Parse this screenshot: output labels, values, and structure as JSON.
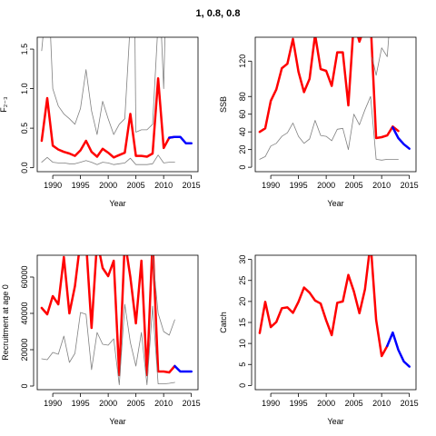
{
  "title": "1, 0.8, 0.8",
  "colors": {
    "main": "#ff0000",
    "projection": "#0000ff",
    "bounds": "#808080",
    "axis": "#000000"
  },
  "chart_data": [
    {
      "id": "F",
      "type": "line",
      "xlabel": "Year",
      "ylabel": "F₂₋₃",
      "xlim": [
        1987.2,
        2016.2
      ],
      "ylim": [
        -0.05,
        1.65
      ],
      "xticks": [
        1990,
        1995,
        2000,
        2005,
        2010,
        2015
      ],
      "yticks": [
        0.0,
        0.5,
        1.0,
        1.5
      ],
      "ytick_labels": [
        "0.0",
        "0.5",
        "1.0",
        "1.5"
      ],
      "series": [
        {
          "role": "estimate",
          "color": "#ff0000",
          "width": 2.5,
          "x": [
            1988,
            1989,
            1990,
            1991,
            1992,
            1993,
            1994,
            1995,
            1996,
            1997,
            1998,
            1999,
            2000,
            2001,
            2002,
            2003,
            2004,
            2005,
            2006,
            2007,
            2008,
            2009,
            2010,
            2011,
            2012
          ],
          "y": [
            0.34,
            0.88,
            0.28,
            0.23,
            0.2,
            0.18,
            0.15,
            0.22,
            0.34,
            0.2,
            0.14,
            0.24,
            0.19,
            0.13,
            0.16,
            0.19,
            0.68,
            0.15,
            0.15,
            0.14,
            0.18,
            1.13,
            0.25,
            0.38,
            0.39
          ]
        },
        {
          "role": "projection",
          "color": "#0000ff",
          "width": 2.5,
          "x": [
            2011,
            2012,
            2013,
            2014,
            2015
          ],
          "y": [
            0.38,
            0.39,
            0.39,
            0.31,
            0.31
          ]
        },
        {
          "role": "upper",
          "color": "#808080",
          "width": 0.8,
          "x": [
            1988,
            1988.5,
            1989,
            1989.5,
            1990,
            1991,
            1992,
            1993,
            1994,
            1995,
            1996,
            1997,
            1998,
            1999,
            2000,
            2001,
            2002,
            2003,
            2004,
            2004.4,
            2004.8,
            2005,
            2006,
            2007,
            2008,
            2009,
            2009.5,
            2010,
            2010.3,
            2010.6
          ],
          "y": [
            1.48,
            1.85,
            1.85,
            1.85,
            1.0,
            0.78,
            0.68,
            0.62,
            0.55,
            0.75,
            1.24,
            0.72,
            0.42,
            0.84,
            0.62,
            0.42,
            0.55,
            0.62,
            1.85,
            1.85,
            1.85,
            0.45,
            0.48,
            0.48,
            0.55,
            1.85,
            1.85,
            1.0,
            1.85,
            1.85
          ]
        },
        {
          "role": "lower",
          "color": "#808080",
          "width": 0.8,
          "x": [
            1988,
            1989,
            1990,
            1991,
            1992,
            1993,
            1994,
            1995,
            1996,
            1997,
            1998,
            1999,
            2000,
            2001,
            2002,
            2003,
            2004,
            2005,
            2006,
            2007,
            2008,
            2009,
            2010,
            2011,
            2012
          ],
          "y": [
            0.07,
            0.13,
            0.07,
            0.06,
            0.06,
            0.05,
            0.05,
            0.07,
            0.09,
            0.07,
            0.04,
            0.07,
            0.06,
            0.04,
            0.05,
            0.06,
            0.12,
            0.04,
            0.04,
            0.04,
            0.05,
            0.16,
            0.06,
            0.07,
            0.07
          ]
        }
      ]
    },
    {
      "id": "SSB",
      "type": "line",
      "xlabel": "Year",
      "ylabel": "SSB",
      "xlim": [
        1987.2,
        2016.2
      ],
      "ylim": [
        -5,
        147
      ],
      "xticks": [
        1990,
        1995,
        2000,
        2005,
        2010,
        2015
      ],
      "yticks": [
        0,
        20,
        40,
        60,
        80,
        120
      ],
      "ytick_labels": [
        "0",
        "20",
        "40",
        "60",
        "80",
        "120"
      ],
      "series": [
        {
          "role": "estimate",
          "color": "#ff0000",
          "width": 2.5,
          "x": [
            1988,
            1989,
            1990,
            1991,
            1992,
            1993,
            1994,
            1995,
            1996,
            1997,
            1998,
            1999,
            2000,
            2001,
            2002,
            2003,
            2004,
            2005,
            2006,
            2007,
            2008,
            2009,
            2010,
            2011,
            2012,
            2013
          ],
          "y": [
            40,
            44,
            75,
            88,
            112,
            117,
            145,
            108,
            85,
            100,
            150,
            111,
            109,
            92,
            130,
            130,
            70,
            165,
            142,
            160,
            165,
            33,
            34,
            36,
            46,
            41
          ]
        },
        {
          "role": "projection",
          "color": "#0000ff",
          "width": 2.5,
          "x": [
            2012,
            2013,
            2014,
            2015
          ],
          "y": [
            45,
            33,
            26,
            21
          ]
        },
        {
          "role": "upper",
          "color": "#808080",
          "width": 0.8,
          "x": [
            2008.3,
            2009,
            2010,
            2011,
            2011.5
          ],
          "y": [
            124,
            104,
            135,
            125,
            165
          ]
        },
        {
          "role": "lower",
          "color": "#808080",
          "width": 0.8,
          "x": [
            1988,
            1989,
            1990,
            1991,
            1992,
            1993,
            1994,
            1995,
            1996,
            1997,
            1998,
            1999,
            2000,
            2001,
            2002,
            2003,
            2004,
            2005,
            2006,
            2007,
            2008,
            2009,
            2010,
            2011,
            2012,
            2013
          ],
          "y": [
            9,
            12,
            24,
            27,
            35,
            39,
            50,
            35,
            27,
            32,
            53,
            36,
            35,
            30,
            43,
            44,
            20,
            60,
            48,
            65,
            80,
            9,
            8,
            9,
            9,
            9
          ]
        }
      ]
    },
    {
      "id": "Recruitment",
      "type": "line",
      "xlabel": "Year",
      "ylabel": "Recruitment at age 0",
      "xlim": [
        1987.2,
        2016.2
      ],
      "ylim": [
        -2000,
        72000
      ],
      "xticks": [
        1990,
        1995,
        2000,
        2005,
        2010,
        2015
      ],
      "yticks": [
        0,
        20000,
        40000,
        60000
      ],
      "ytick_labels": [
        "0",
        "20000",
        "40000",
        "60000"
      ],
      "series": [
        {
          "role": "estimate",
          "color": "#ff0000",
          "width": 2.5,
          "x": [
            1988,
            1989,
            1990,
            1991,
            1992,
            1993,
            1994,
            1995,
            1996,
            1997,
            1998,
            1999,
            2000,
            2001,
            2002,
            2003,
            2004,
            2005,
            2006,
            2007,
            2008,
            2009,
            2010,
            2011,
            2012
          ],
          "y": [
            43000,
            39500,
            49500,
            45000,
            71000,
            40000,
            55000,
            80000,
            80000,
            32000,
            80000,
            65000,
            60500,
            69000,
            6000,
            80000,
            60000,
            34500,
            69000,
            6000,
            80000,
            8000,
            8000,
            7500,
            11000
          ]
        },
        {
          "role": "projection",
          "color": "#0000ff",
          "width": 2.5,
          "x": [
            2012,
            2013,
            2014,
            2015
          ],
          "y": [
            11000,
            8000,
            8000,
            8000
          ]
        },
        {
          "role": "upper",
          "color": "#808080",
          "width": 0.8,
          "x": [
            2008,
            2009,
            2010,
            2011,
            2012
          ],
          "y": [
            72000,
            40000,
            30000,
            28000,
            36500
          ]
        },
        {
          "role": "lower",
          "color": "#808080",
          "width": 0.8,
          "x": [
            1988,
            1989,
            1990,
            1991,
            1992,
            1993,
            1994,
            1995,
            1996,
            1997,
            1998,
            1999,
            2000,
            2001,
            2002,
            2003,
            2004,
            2005,
            2006,
            2007,
            2008,
            2009,
            2010,
            2011,
            2012
          ],
          "y": [
            15000,
            14500,
            18500,
            17500,
            27500,
            13000,
            18000,
            40500,
            39500,
            9000,
            29500,
            23000,
            22500,
            26000,
            700,
            45000,
            24000,
            11000,
            29500,
            700,
            44000,
            1200,
            1200,
            1500,
            2000
          ]
        }
      ]
    },
    {
      "id": "Catch",
      "type": "line",
      "xlabel": "Year",
      "ylabel": "Catch",
      "xlim": [
        1987.2,
        2016.2
      ],
      "ylim": [
        -1,
        31
      ],
      "xticks": [
        1990,
        1995,
        2000,
        2005,
        2010,
        2015
      ],
      "yticks": [
        0,
        5,
        10,
        15,
        20,
        25,
        30
      ],
      "ytick_labels": [
        "0",
        "5",
        "10",
        "15",
        "20",
        "25",
        "30"
      ],
      "series": [
        {
          "role": "estimate",
          "color": "#ff0000",
          "width": 2.5,
          "x": [
            1988,
            1989,
            1990,
            1991,
            1992,
            1993,
            1994,
            1995,
            1996,
            1997,
            1998,
            1999,
            2000,
            2001,
            2002,
            2003,
            2004,
            2005,
            2006,
            2007,
            2008,
            2009,
            2010,
            2011
          ],
          "y": [
            12.5,
            19.9,
            13.9,
            15.1,
            18.4,
            18.6,
            17.3,
            19.9,
            23.3,
            22.1,
            20.2,
            19.5,
            15.5,
            12.0,
            19.7,
            20.0,
            26.3,
            22.4,
            17.2,
            22.9,
            34,
            15.6,
            7.0,
            9.4
          ]
        },
        {
          "role": "projection",
          "color": "#0000ff",
          "width": 2.5,
          "x": [
            2011,
            2012,
            2013,
            2014,
            2015
          ],
          "y": [
            9.4,
            12.6,
            8.5,
            5.7,
            4.5
          ]
        }
      ]
    }
  ]
}
